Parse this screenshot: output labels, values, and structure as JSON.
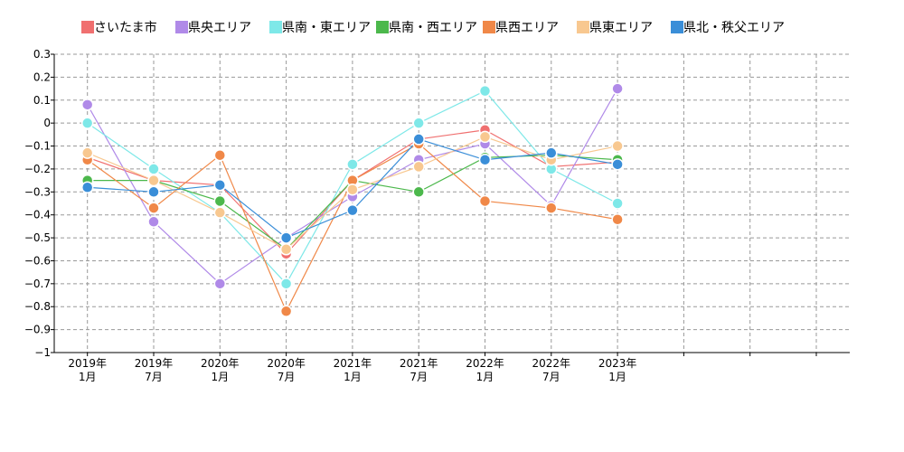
{
  "chart_data": {
    "type": "line",
    "x": [
      "2019年\n1月",
      "2019年\n7月",
      "2020年\n1月",
      "2020年\n7月",
      "2021年\n1月",
      "2021年\n7月",
      "2022年\n1月",
      "2022年\n7月",
      "2023年\n1月"
    ],
    "xlabel": "",
    "ylabel": "",
    "ylim": [
      -1,
      0.3
    ],
    "yticks": [
      "0.3",
      "0.2",
      "0.1",
      "0",
      "−0.1",
      "−0.2",
      "−0.3",
      "−0.4",
      "−0.5",
      "−0.6",
      "−0.7",
      "−0.8",
      "−0.9",
      "−1"
    ],
    "grid": true,
    "legend_position": "top",
    "series": [
      {
        "name": "さいたま市",
        "color": "#f07070",
        "values": [
          -0.15,
          -0.25,
          -0.27,
          -0.57,
          -0.25,
          -0.07,
          -0.03,
          -0.19,
          -0.17
        ]
      },
      {
        "name": "県央エリア",
        "color": "#b08ae8",
        "values": [
          0.08,
          -0.43,
          -0.7,
          -0.5,
          -0.32,
          -0.16,
          -0.09,
          -0.36,
          0.15
        ]
      },
      {
        "name": "県南・東エリア",
        "color": "#7ee8e8",
        "values": [
          0.0,
          -0.2,
          -0.39,
          -0.7,
          -0.18,
          0.0,
          0.14,
          -0.2,
          -0.35
        ]
      },
      {
        "name": "県南・西エリア",
        "color": "#4cb84c",
        "values": [
          -0.25,
          -0.25,
          -0.34,
          -0.55,
          -0.25,
          -0.3,
          -0.15,
          -0.14,
          -0.16
        ]
      },
      {
        "name": "県西エリア",
        "color": "#f08848",
        "values": [
          -0.16,
          -0.37,
          -0.14,
          -0.82,
          -0.25,
          -0.09,
          -0.34,
          -0.37,
          -0.42
        ]
      },
      {
        "name": "県東エリア",
        "color": "#f8c890",
        "values": [
          -0.13,
          -0.25,
          -0.39,
          -0.55,
          -0.29,
          -0.19,
          -0.06,
          -0.16,
          -0.1
        ]
      },
      {
        "name": "県北・秩父エリア",
        "color": "#3a8ed8",
        "values": [
          -0.28,
          -0.3,
          -0.27,
          -0.5,
          -0.38,
          -0.07,
          -0.16,
          -0.13,
          -0.18
        ]
      }
    ]
  }
}
